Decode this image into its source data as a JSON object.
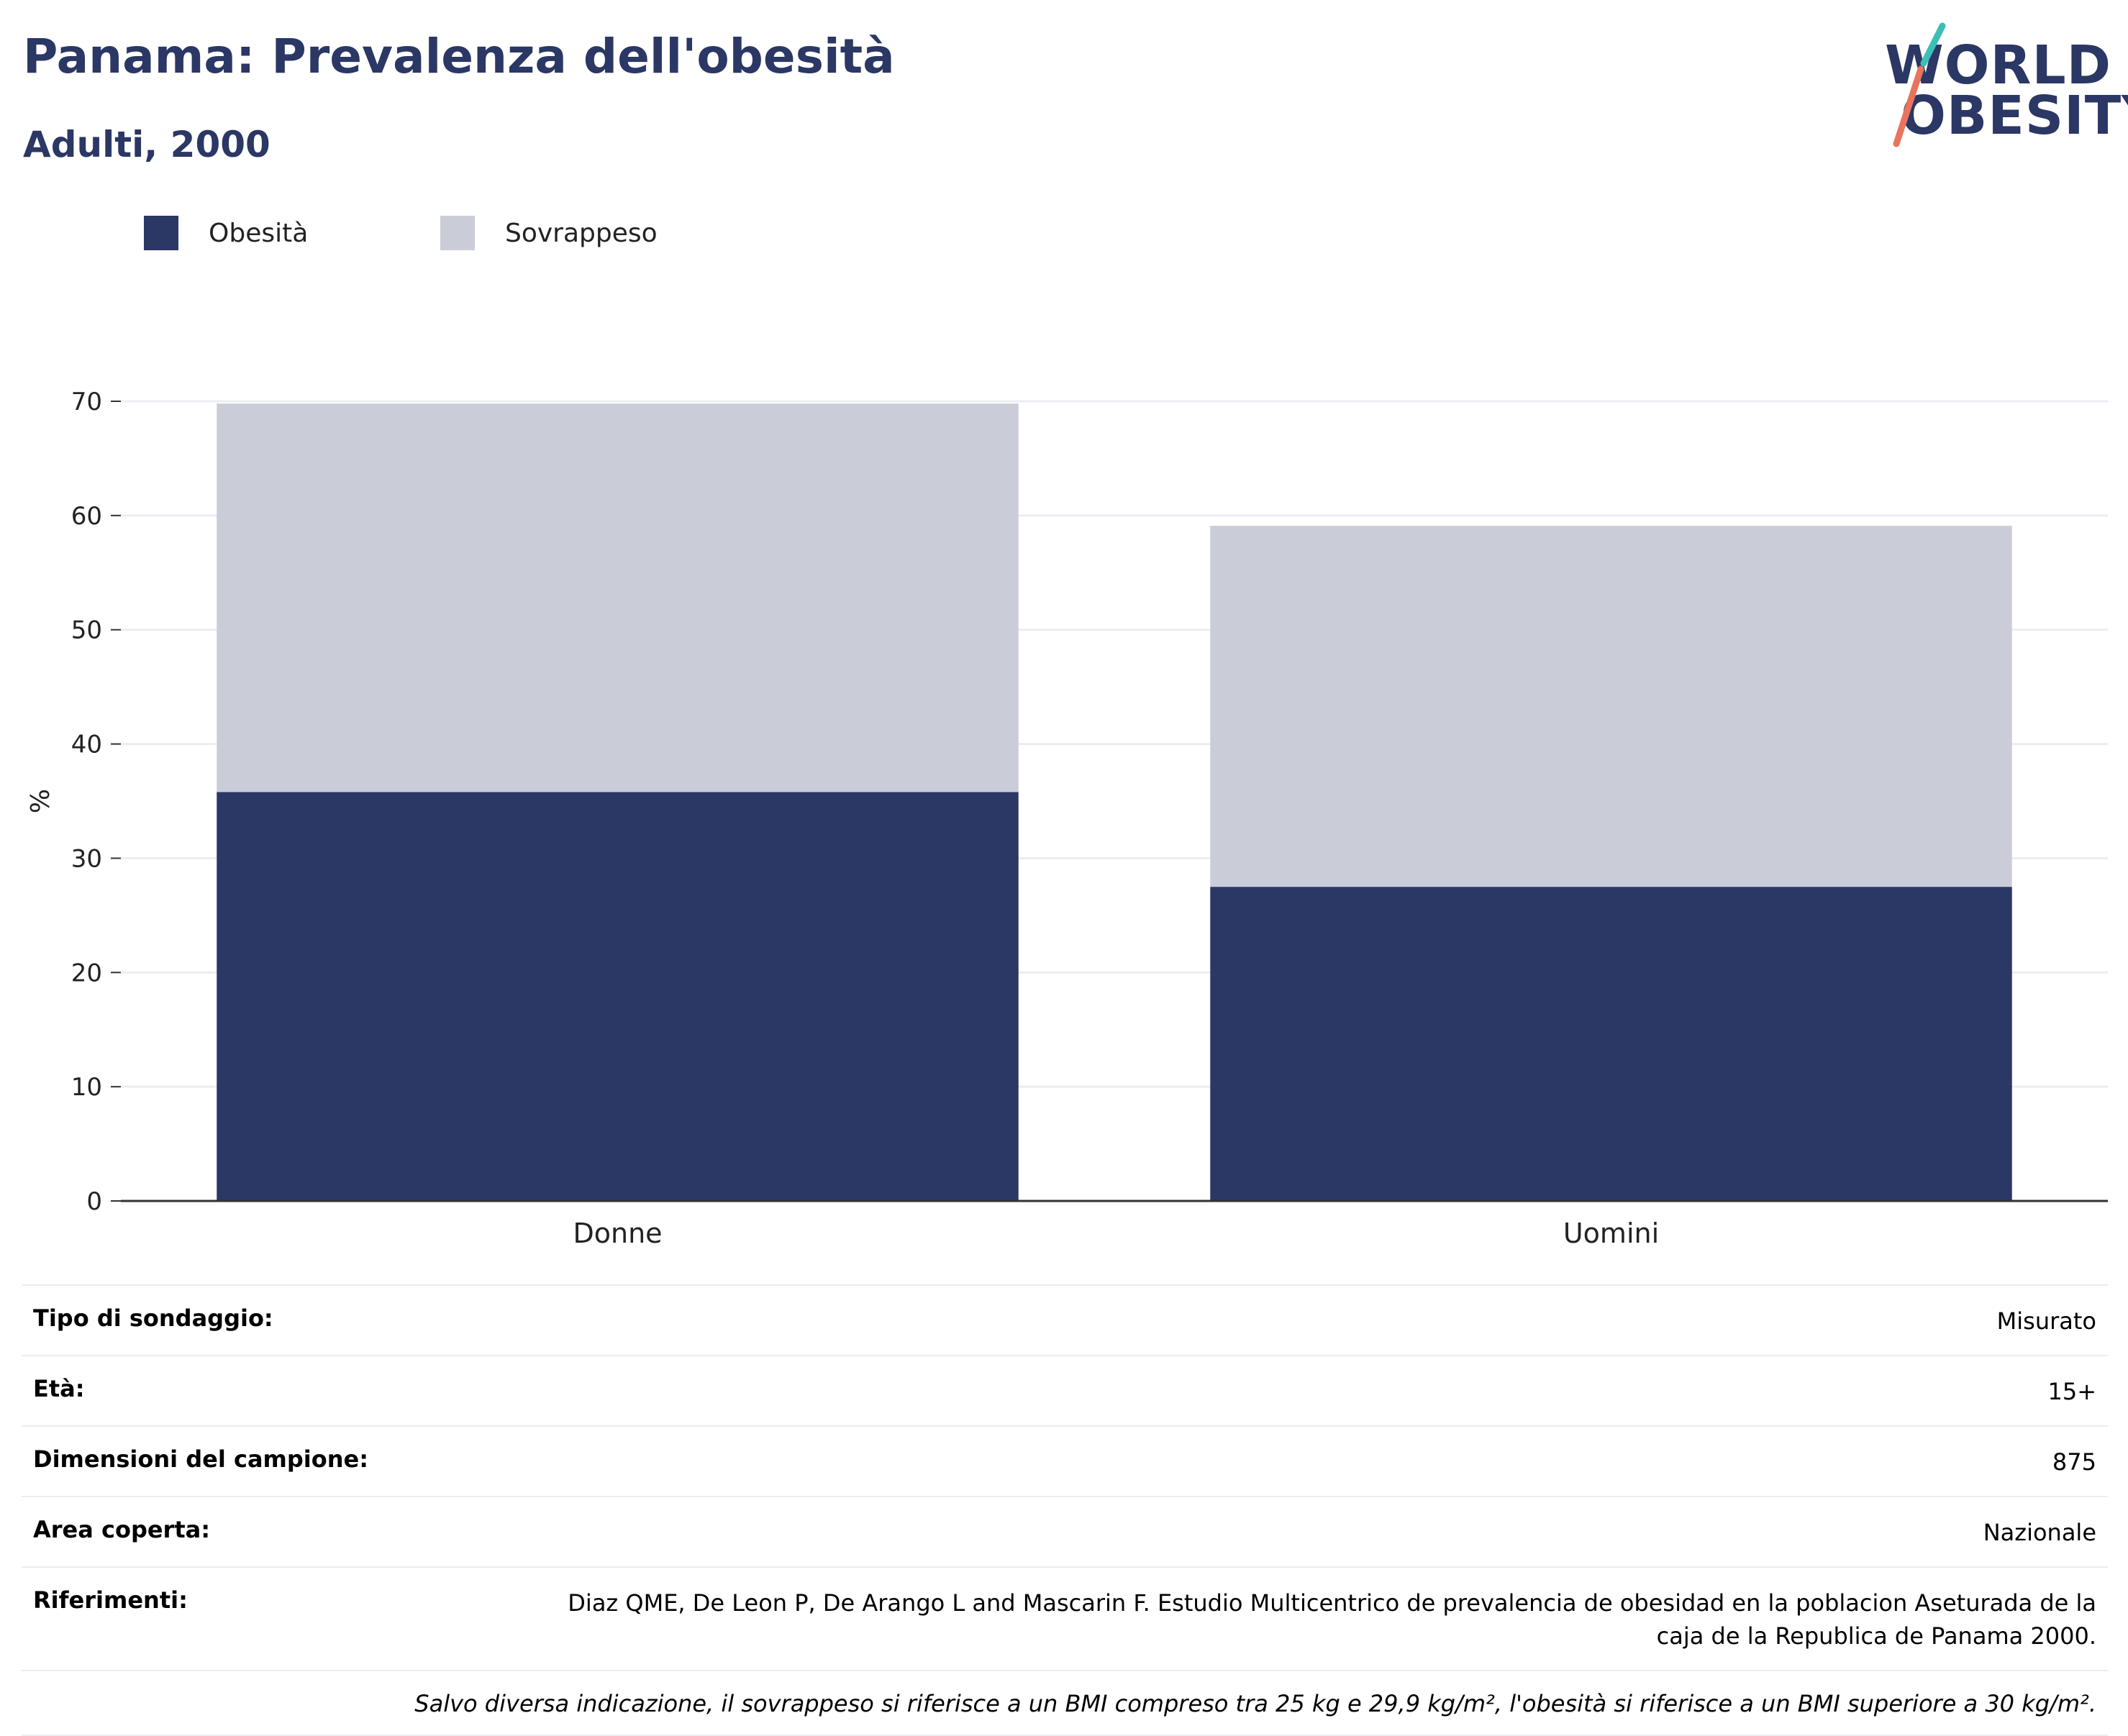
{
  "title": "Panama: Prevalenza dell'obesità",
  "subtitle": "Adulti, 2000",
  "logo": {
    "line1": "WORLD",
    "line2": "OBESITY"
  },
  "legend": [
    {
      "label": "Obesità",
      "color": "#2b3764"
    },
    {
      "label": "Sovrappeso",
      "color": "#cacdd8"
    }
  ],
  "chart_data": {
    "type": "bar",
    "stacked": true,
    "categories": [
      "Donne",
      "Uomini"
    ],
    "series": [
      {
        "name": "Obesità",
        "values": [
          35.8,
          27.5
        ],
        "color": "#2b3764"
      },
      {
        "name": "Sovrappeso",
        "values": [
          34.0,
          31.6
        ],
        "color": "#cacdd8"
      }
    ],
    "ylabel": "%",
    "ylim": [
      0,
      70
    ],
    "yticks": [
      0,
      10,
      20,
      30,
      40,
      50,
      60,
      70
    ],
    "grid": true,
    "legend_position": "top-left"
  },
  "meta": [
    {
      "key": "Tipo di sondaggio:",
      "value": "Misurato"
    },
    {
      "key": "Età:",
      "value": "15+"
    },
    {
      "key": "Dimensioni del campione:",
      "value": "875"
    },
    {
      "key": "Area coperta:",
      "value": "Nazionale"
    },
    {
      "key": "Riferimenti:",
      "value": "Diaz QME, De Leon P, De Arango L and Mascarin F. Estudio Multicentrico de prevalencia de obesidad en la poblacion Aseturada de la caja de la Republica de Panama 2000."
    }
  ],
  "note": "Salvo diversa indicazione, il sovrappeso si riferisce a un BMI compreso tra 25 kg e 29,9 kg/m², l'obesità si riferisce a un BMI superiore a 30 kg/m²."
}
